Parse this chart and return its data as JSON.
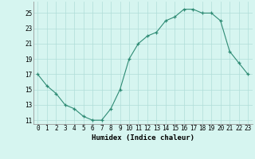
{
  "x": [
    0,
    1,
    2,
    3,
    4,
    5,
    6,
    7,
    8,
    9,
    10,
    11,
    12,
    13,
    14,
    15,
    16,
    17,
    18,
    19,
    20,
    21,
    22,
    23
  ],
  "y": [
    17.0,
    15.5,
    14.5,
    13.0,
    12.5,
    11.5,
    11.0,
    11.0,
    12.5,
    15.0,
    19.0,
    21.0,
    22.0,
    22.5,
    24.0,
    24.5,
    25.5,
    25.5,
    25.0,
    25.0,
    24.0,
    20.0,
    18.5,
    17.0
  ],
  "line_color": "#2e8b74",
  "marker_color": "#2e8b74",
  "bg_color": "#d6f5f0",
  "grid_color": "#b0ddd8",
  "xlabel": "Humidex (Indice chaleur)",
  "ylim": [
    10.5,
    26.5
  ],
  "yticks": [
    11,
    13,
    15,
    17,
    19,
    21,
    23,
    25
  ],
  "xticks": [
    0,
    1,
    2,
    3,
    4,
    5,
    6,
    7,
    8,
    9,
    10,
    11,
    12,
    13,
    14,
    15,
    16,
    17,
    18,
    19,
    20,
    21,
    22,
    23
  ],
  "axis_fontsize": 6.5,
  "tick_fontsize": 5.5
}
